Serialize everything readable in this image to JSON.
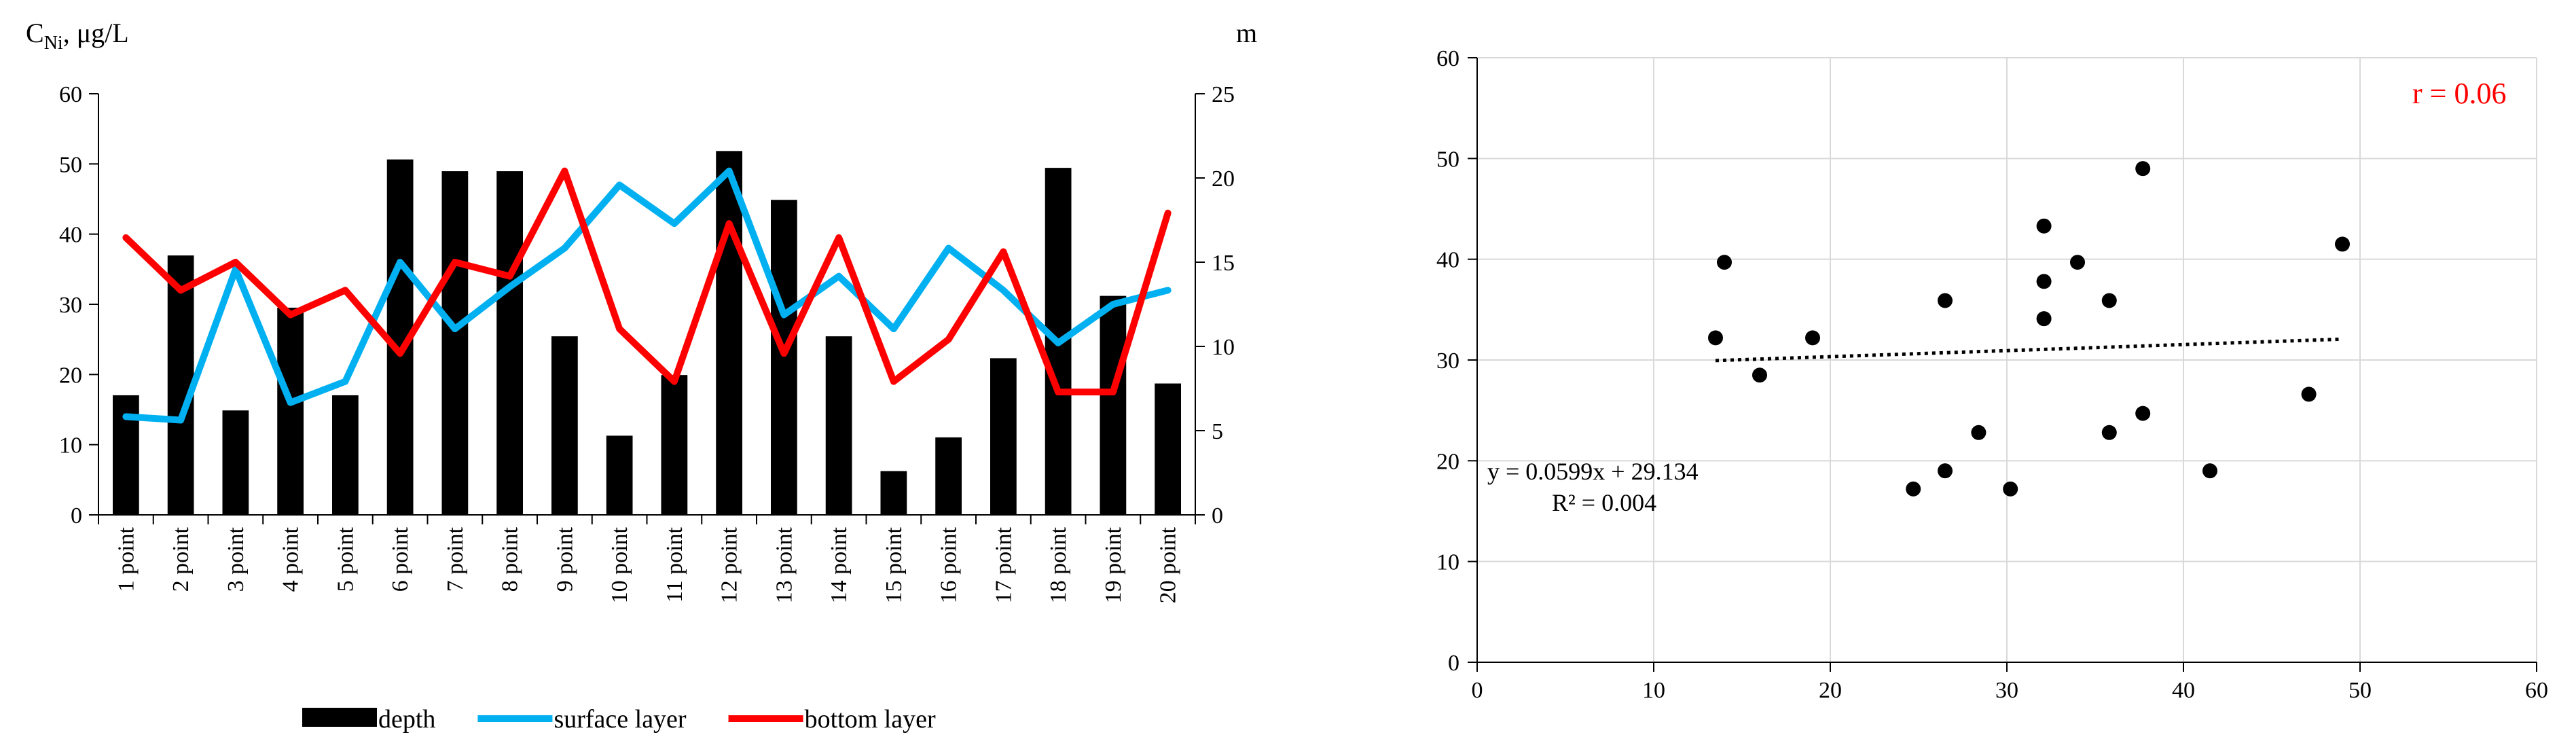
{
  "chart_data": [
    {
      "type": "bar+line",
      "title": "",
      "ylabel_main": "C",
      "ylabel_sub": "Ni",
      "ylabel_rest": ", μg/L",
      "y2label": "m",
      "ylim": [
        0,
        60
      ],
      "yticks": [
        0,
        10,
        20,
        30,
        40,
        50,
        60
      ],
      "y2lim": [
        0,
        25
      ],
      "y2ticks": [
        0,
        5,
        10,
        15,
        20,
        25
      ],
      "categories": [
        "1 point",
        "2 point",
        "3 point",
        "4 point",
        "5 point",
        "6 point",
        "7 point",
        "8 point",
        "9 point",
        "10 point",
        "11 point",
        "12 point",
        "13 point",
        "14 point",
        "15 point",
        "16 point",
        "17 point",
        "18 point",
        "19 point",
        "20 point"
      ],
      "series": [
        {
          "name": "depth",
          "kind": "bar",
          "axis": "y2",
          "color": "#000000",
          "values": [
            7.1,
            15.4,
            6.2,
            12.3,
            7.1,
            21.1,
            20.4,
            20.4,
            10.6,
            4.7,
            8.3,
            21.6,
            18.7,
            10.6,
            2.6,
            4.6,
            9.3,
            20.6,
            13.0,
            7.8
          ]
        },
        {
          "name": "surface layer",
          "kind": "line",
          "axis": "y",
          "color": "#00B0F0",
          "values": [
            14.0,
            13.5,
            35.0,
            16.0,
            19.0,
            36.0,
            26.5,
            32.5,
            38.0,
            47.0,
            41.5,
            49.0,
            28.5,
            34.0,
            26.5,
            38.0,
            32.0,
            24.5,
            30.0,
            32.0
          ]
        },
        {
          "name": "bottom layer",
          "kind": "line",
          "axis": "y",
          "color": "#FF0000",
          "values": [
            39.5,
            32.0,
            36.0,
            28.5,
            32.0,
            23.0,
            36.0,
            34.0,
            49.0,
            26.5,
            19.0,
            41.5,
            23.0,
            39.5,
            19.0,
            25.0,
            37.5,
            17.5,
            17.5,
            43.0
          ]
        }
      ],
      "legend_position": "bottom",
      "grid": false
    },
    {
      "type": "scatter",
      "title": "",
      "xlim": [
        0,
        60
      ],
      "xticks": [
        0,
        10,
        20,
        30,
        40,
        50,
        60
      ],
      "ylim": [
        0,
        60
      ],
      "yticks": [
        0,
        10,
        20,
        30,
        40,
        50,
        60
      ],
      "grid": true,
      "point_color": "#000000",
      "points": [
        [
          13.5,
          32.2
        ],
        [
          14.0,
          39.7
        ],
        [
          16.0,
          28.5
        ],
        [
          19.0,
          32.2
        ],
        [
          24.7,
          17.2
        ],
        [
          26.5,
          19.0
        ],
        [
          26.5,
          35.9
        ],
        [
          28.4,
          22.8
        ],
        [
          30.2,
          17.2
        ],
        [
          32.1,
          34.1
        ],
        [
          32.1,
          37.8
        ],
        [
          32.1,
          43.3
        ],
        [
          34.0,
          39.7
        ],
        [
          35.8,
          22.8
        ],
        [
          35.8,
          35.9
        ],
        [
          37.7,
          24.7
        ],
        [
          37.7,
          49.0
        ],
        [
          41.5,
          19.0
        ],
        [
          47.1,
          26.6
        ],
        [
          49.0,
          41.5
        ]
      ],
      "trendline": {
        "slope": 0.0599,
        "intercept": 29.134,
        "x_range": [
          13.5,
          49.0
        ],
        "style": "dotted"
      },
      "equation_text": "y = 0.0599x + 29.134",
      "r2_text": "R² = 0.004",
      "r_text": "r = 0.06",
      "r_color": "#FF0000"
    }
  ]
}
